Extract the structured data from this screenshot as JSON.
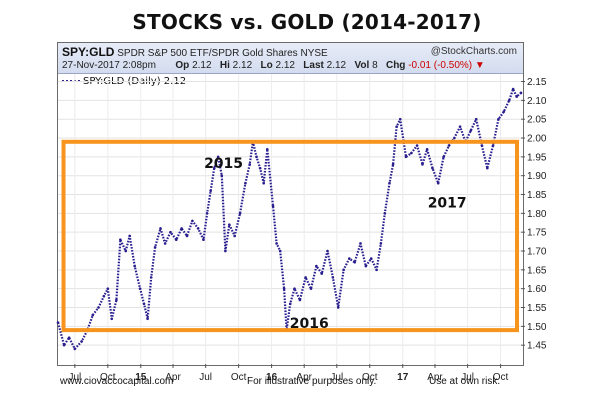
{
  "title": "STOCKS vs. GOLD (2014-2017)",
  "header": {
    "symbol": "SPY:GLD",
    "description": "SPDR S&P 500 ETF/SPDR Gold Shares",
    "exchange": "NYSE",
    "brand": "@StockCharts.com",
    "date": "27-Nov-2017 2:08pm",
    "op_label": "Op",
    "op_value": "2.12",
    "hi_label": "Hi",
    "hi_value": "2.12",
    "lo_label": "Lo",
    "lo_value": "2.12",
    "last_label": "Last",
    "last_value": "2.12",
    "vol_label": "Vol",
    "vol_value": "8",
    "chg_label": "Chg",
    "chg_value": "-0.01 (-0.50%)",
    "chg_arrow_icon": "down-triangle-icon"
  },
  "legend": {
    "text": "SPY:GLD (Daily) 2.12"
  },
  "footer": {
    "website": "www.ciovaccocapital.com",
    "note": "For illustrative purposes only.",
    "risk": "Use at own risk."
  },
  "colors": {
    "series": "#2a1f8f",
    "box": "#f7941d",
    "header_bg": "#dbe2f2",
    "chg": "#cc0000"
  },
  "chart_data": {
    "type": "line",
    "series_name": "SPY:GLD (Daily)",
    "x_ticks": [
      "Jul",
      "Oct",
      "15",
      "Apr",
      "Jul",
      "Oct",
      "16",
      "Apr",
      "Jul",
      "Oct",
      "17",
      "Apr",
      "Jul",
      "Oct"
    ],
    "y_ticks": [
      "1.45",
      "1.50",
      "1.55",
      "1.60",
      "1.65",
      "1.70",
      "1.75",
      "1.80",
      "1.85",
      "1.90",
      "1.95",
      "2.00",
      "2.05",
      "2.10",
      "2.15"
    ],
    "ylim": [
      1.4,
      2.17
    ],
    "xlim": [
      "2014-05-15",
      "2017-11-27"
    ],
    "grid": true,
    "legend": "top-left",
    "points": [
      [
        "2014-05-15",
        1.51
      ],
      [
        "2014-06-01",
        1.45
      ],
      [
        "2014-06-15",
        1.47
      ],
      [
        "2014-07-01",
        1.44
      ],
      [
        "2014-07-20",
        1.46
      ],
      [
        "2014-08-05",
        1.49
      ],
      [
        "2014-08-20",
        1.53
      ],
      [
        "2014-09-05",
        1.55
      ],
      [
        "2014-09-20",
        1.58
      ],
      [
        "2014-10-01",
        1.6
      ],
      [
        "2014-10-12",
        1.52
      ],
      [
        "2014-10-25",
        1.57
      ],
      [
        "2014-11-05",
        1.73
      ],
      [
        "2014-11-20",
        1.7
      ],
      [
        "2014-12-01",
        1.74
      ],
      [
        "2014-12-15",
        1.66
      ],
      [
        "2014-12-30",
        1.6
      ],
      [
        "2015-01-10",
        1.56
      ],
      [
        "2015-01-20",
        1.52
      ],
      [
        "2015-01-30",
        1.63
      ],
      [
        "2015-02-10",
        1.71
      ],
      [
        "2015-02-25",
        1.76
      ],
      [
        "2015-03-10",
        1.72
      ],
      [
        "2015-03-25",
        1.75
      ],
      [
        "2015-04-10",
        1.73
      ],
      [
        "2015-04-25",
        1.76
      ],
      [
        "2015-05-10",
        1.74
      ],
      [
        "2015-05-25",
        1.78
      ],
      [
        "2015-06-10",
        1.76
      ],
      [
        "2015-06-25",
        1.73
      ],
      [
        "2015-07-05",
        1.8
      ],
      [
        "2015-07-15",
        1.86
      ],
      [
        "2015-07-25",
        1.92
      ],
      [
        "2015-08-05",
        1.95
      ],
      [
        "2015-08-15",
        1.9
      ],
      [
        "2015-08-25",
        1.7
      ],
      [
        "2015-09-05",
        1.77
      ],
      [
        "2015-09-20",
        1.74
      ],
      [
        "2015-10-05",
        1.8
      ],
      [
        "2015-10-20",
        1.88
      ],
      [
        "2015-11-01",
        1.93
      ],
      [
        "2015-11-10",
        1.99
      ],
      [
        "2015-11-20",
        1.95
      ],
      [
        "2015-11-30",
        1.92
      ],
      [
        "2015-12-10",
        1.88
      ],
      [
        "2015-12-20",
        1.97
      ],
      [
        "2016-01-05",
        1.82
      ],
      [
        "2016-01-15",
        1.72
      ],
      [
        "2016-01-25",
        1.7
      ],
      [
        "2016-02-05",
        1.6
      ],
      [
        "2016-02-12",
        1.49
      ],
      [
        "2016-02-22",
        1.56
      ],
      [
        "2016-03-05",
        1.6
      ],
      [
        "2016-03-20",
        1.57
      ],
      [
        "2016-04-05",
        1.63
      ],
      [
        "2016-04-20",
        1.6
      ],
      [
        "2016-05-05",
        1.66
      ],
      [
        "2016-05-20",
        1.64
      ],
      [
        "2016-06-05",
        1.7
      ],
      [
        "2016-06-20",
        1.63
      ],
      [
        "2016-07-05",
        1.55
      ],
      [
        "2016-07-20",
        1.65
      ],
      [
        "2016-08-05",
        1.68
      ],
      [
        "2016-08-20",
        1.67
      ],
      [
        "2016-09-05",
        1.72
      ],
      [
        "2016-09-20",
        1.66
      ],
      [
        "2016-10-05",
        1.68
      ],
      [
        "2016-10-20",
        1.65
      ],
      [
        "2016-11-01",
        1.72
      ],
      [
        "2016-11-12",
        1.8
      ],
      [
        "2016-11-25",
        1.88
      ],
      [
        "2016-12-05",
        1.93
      ],
      [
        "2016-12-15",
        2.03
      ],
      [
        "2016-12-25",
        2.05
      ],
      [
        "2017-01-10",
        1.95
      ],
      [
        "2017-01-25",
        1.96
      ],
      [
        "2017-02-10",
        1.98
      ],
      [
        "2017-02-25",
        1.93
      ],
      [
        "2017-03-10",
        1.97
      ],
      [
        "2017-03-25",
        1.92
      ],
      [
        "2017-04-10",
        1.88
      ],
      [
        "2017-04-25",
        1.95
      ],
      [
        "2017-05-10",
        1.98
      ],
      [
        "2017-05-25",
        2.0
      ],
      [
        "2017-06-10",
        2.03
      ],
      [
        "2017-06-25",
        1.99
      ],
      [
        "2017-07-10",
        2.02
      ],
      [
        "2017-07-25",
        2.05
      ],
      [
        "2017-08-10",
        1.98
      ],
      [
        "2017-08-25",
        1.92
      ],
      [
        "2017-09-10",
        1.98
      ],
      [
        "2017-09-25",
        2.05
      ],
      [
        "2017-10-10",
        2.07
      ],
      [
        "2017-10-25",
        2.1
      ],
      [
        "2017-11-05",
        2.13
      ],
      [
        "2017-11-15",
        2.11
      ],
      [
        "2017-11-27",
        2.12
      ]
    ],
    "annotations": [
      {
        "text": "2015",
        "x": "2015-08-20",
        "y": 1.92
      },
      {
        "text": "2016",
        "x": "2016-04-15",
        "y": 1.495
      },
      {
        "text": "2017",
        "x": "2017-05-05",
        "y": 1.815
      }
    ],
    "box": {
      "x_from": "2014-06-05",
      "x_to": "2017-11-27",
      "y_from": 1.49,
      "y_to": 1.99
    }
  }
}
